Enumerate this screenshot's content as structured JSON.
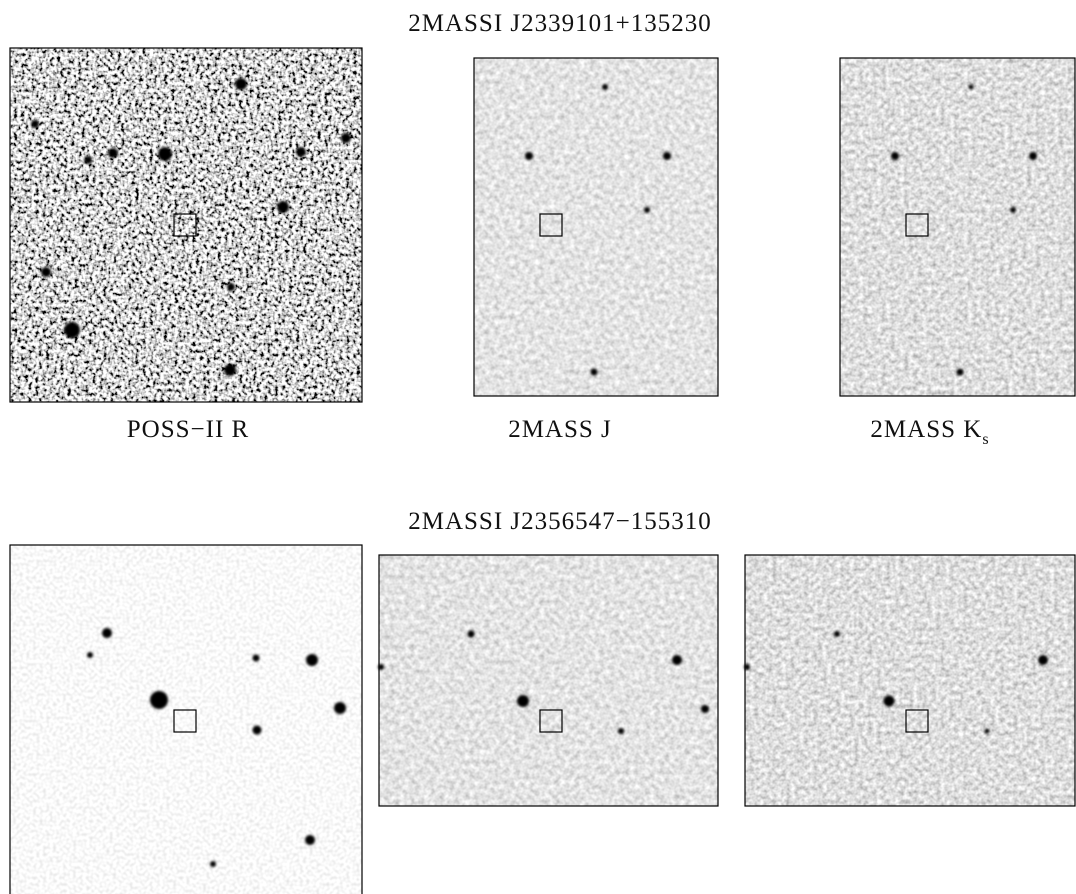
{
  "figure": {
    "panels": [
      {
        "title": "2MASSI J2339101+135230",
        "labels": [
          "POSS−II R",
          "2MASS J",
          {
            "text": "2MASS K",
            "subscript": "s"
          }
        ]
      },
      {
        "title": "2MASSI J2356547−155310"
      }
    ]
  }
}
